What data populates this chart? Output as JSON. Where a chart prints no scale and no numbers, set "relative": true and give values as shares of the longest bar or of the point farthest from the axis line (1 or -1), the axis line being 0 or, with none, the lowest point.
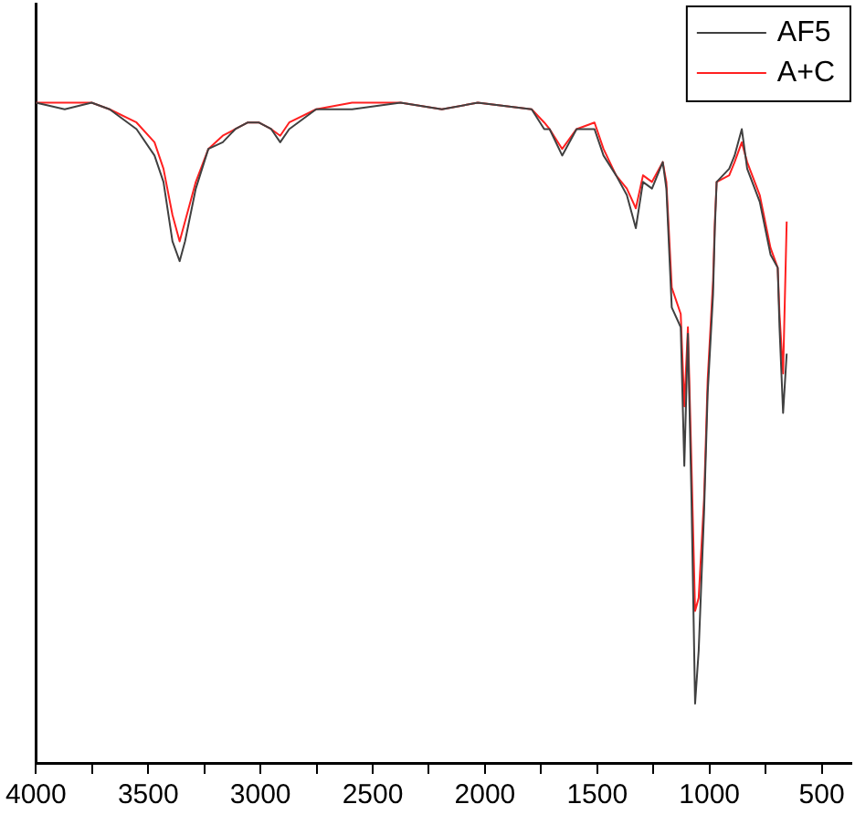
{
  "chart_data": {
    "type": "line",
    "relative": true,
    "legend": "top right",
    "marker": "none",
    "line_style": "solid",
    "grid": false,
    "x": [
      4000,
      3872,
      3752,
      3672,
      3552,
      3472,
      3432,
      3392,
      3360,
      3336,
      3288,
      3232,
      3168,
      3112,
      3056,
      3008,
      2952,
      2912,
      2872,
      2752,
      2592,
      2376,
      2192,
      2032,
      1792,
      1736,
      1712,
      1656,
      1592,
      1512,
      1472,
      1416,
      1368,
      1328,
      1296,
      1256,
      1208,
      1192,
      1168,
      1128,
      1112,
      1096,
      1080,
      1064,
      1048,
      1024,
      1008,
      984,
      976,
      968,
      912,
      888,
      856,
      832,
      776,
      728,
      696,
      688,
      672,
      656
    ],
    "xlim": [
      4000,
      368
    ],
    "xticks": [
      4000,
      {
        "value": 3750,
        "label": null
      },
      3500,
      {
        "value": 3250,
        "label": null
      },
      3000,
      {
        "value": 2750,
        "label": null
      },
      2500,
      {
        "value": 2250,
        "label": null
      },
      2000,
      {
        "value": 1750,
        "label": null
      },
      1500,
      {
        "value": 1250,
        "label": null
      },
      1000,
      {
        "value": 750,
        "label": null
      },
      500
    ],
    "series": [
      {
        "name": "AF5",
        "color": "#404040",
        "values": [
          1.0,
          0.99,
          1.0,
          0.99,
          0.96,
          0.92,
          0.88,
          0.79,
          0.76,
          0.79,
          0.87,
          0.93,
          0.94,
          0.96,
          0.97,
          0.97,
          0.96,
          0.94,
          0.96,
          0.99,
          0.99,
          1.0,
          0.99,
          1.0,
          0.99,
          0.96,
          0.96,
          0.92,
          0.96,
          0.96,
          0.92,
          0.89,
          0.86,
          0.81,
          0.88,
          0.87,
          0.91,
          0.87,
          0.69,
          0.66,
          0.45,
          0.65,
          0.4,
          0.09,
          0.17,
          0.38,
          0.56,
          0.71,
          0.81,
          0.88,
          0.9,
          0.92,
          0.96,
          0.9,
          0.85,
          0.77,
          0.75,
          0.66,
          0.53,
          0.62
        ]
      },
      {
        "name": "A+C",
        "color": "#ff2020",
        "values": [
          1.0,
          1.0,
          1.0,
          0.99,
          0.97,
          0.94,
          0.9,
          0.83,
          0.79,
          0.82,
          0.88,
          0.93,
          0.95,
          0.96,
          0.97,
          0.97,
          0.96,
          0.95,
          0.97,
          0.99,
          1.0,
          1.0,
          0.99,
          1.0,
          0.99,
          0.97,
          0.96,
          0.93,
          0.96,
          0.97,
          0.93,
          0.89,
          0.87,
          0.84,
          0.89,
          0.88,
          0.91,
          0.88,
          0.72,
          0.68,
          0.54,
          0.66,
          0.45,
          0.23,
          0.25,
          0.4,
          0.58,
          0.73,
          0.82,
          0.88,
          0.89,
          0.91,
          0.94,
          0.91,
          0.86,
          0.78,
          0.75,
          0.68,
          0.59,
          0.82
        ]
      }
    ]
  }
}
